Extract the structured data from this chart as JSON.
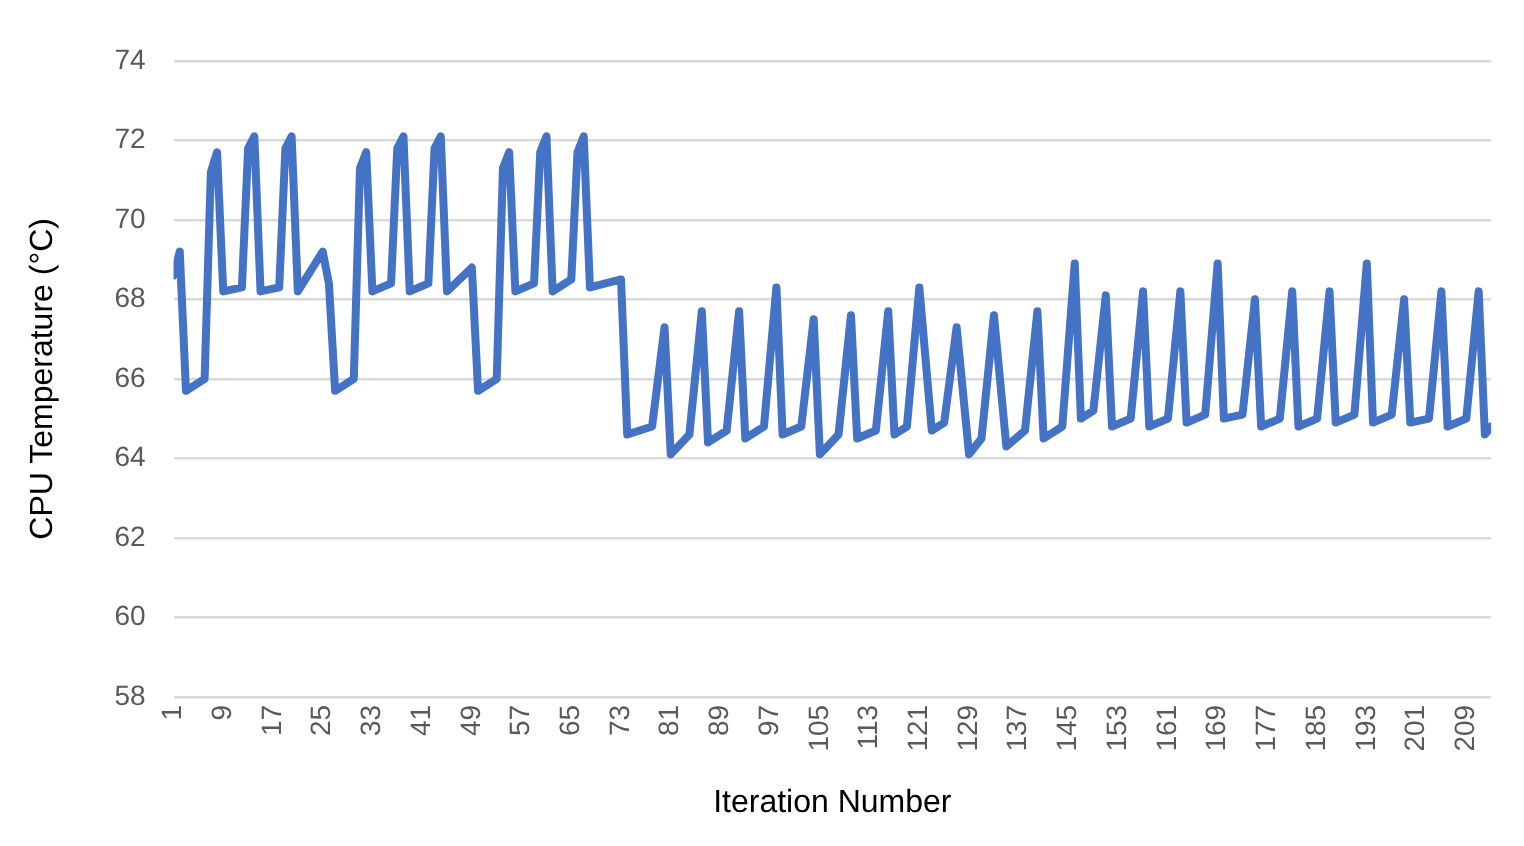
{
  "chart_data": {
    "type": "line",
    "xlabel": "Iteration Number",
    "ylabel": "CPU Temperature (°C)",
    "xlim": [
      1,
      213
    ],
    "xticks": [
      1,
      9,
      17,
      25,
      33,
      41,
      49,
      57,
      65,
      73,
      81,
      89,
      97,
      105,
      113,
      121,
      129,
      137,
      145,
      153,
      161,
      169,
      177,
      185,
      193,
      201,
      209
    ],
    "ylim": [
      58,
      74
    ],
    "yticks": [
      58,
      60,
      62,
      64,
      66,
      68,
      70,
      72,
      74
    ],
    "grid": "y",
    "legend": false,
    "marker": "none",
    "line_style": "solid",
    "series": [
      {
        "color": "#4472c4",
        "x": [
          1,
          2,
          3,
          6,
          7,
          8,
          9,
          12,
          13,
          14,
          15,
          18,
          19,
          20,
          21,
          25,
          26,
          27,
          30,
          31,
          32,
          33,
          36,
          37,
          38,
          39,
          42,
          43,
          44,
          45,
          49,
          50,
          53,
          54,
          55,
          56,
          59,
          60,
          61,
          62,
          65,
          66,
          67,
          68,
          73,
          74,
          78,
          80,
          81,
          84,
          86,
          87,
          90,
          92,
          93,
          96,
          98,
          99,
          102,
          104,
          105,
          108,
          110,
          111,
          114,
          116,
          117,
          119,
          121,
          123,
          125,
          127,
          129,
          131,
          133,
          135,
          138,
          140,
          141,
          144,
          146,
          147,
          149,
          151,
          152,
          155,
          157,
          158,
          161,
          163,
          164,
          167,
          169,
          170,
          173,
          175,
          176,
          179,
          181,
          182,
          185,
          187,
          188,
          191,
          193,
          194,
          197,
          199,
          200,
          203,
          205,
          206,
          209,
          211,
          212,
          213
        ],
        "values": [
          68.6,
          69.2,
          65.7,
          66.0,
          71.2,
          71.7,
          68.2,
          68.3,
          71.8,
          72.1,
          68.2,
          68.3,
          71.8,
          72.1,
          68.2,
          69.2,
          68.4,
          65.7,
          66.0,
          71.3,
          71.7,
          68.2,
          68.4,
          71.8,
          72.1,
          68.2,
          68.4,
          71.8,
          72.1,
          68.2,
          68.8,
          65.7,
          66.0,
          71.3,
          71.7,
          68.2,
          68.4,
          71.7,
          72.1,
          68.2,
          68.5,
          71.7,
          72.1,
          68.3,
          68.5,
          64.6,
          64.8,
          67.3,
          64.1,
          64.6,
          67.7,
          64.4,
          64.7,
          67.7,
          64.5,
          64.8,
          68.3,
          64.6,
          64.8,
          67.5,
          64.1,
          64.6,
          67.6,
          64.5,
          64.7,
          67.7,
          64.6,
          64.8,
          68.3,
          64.7,
          64.9,
          67.3,
          64.1,
          64.5,
          67.6,
          64.3,
          64.7,
          67.7,
          64.5,
          64.8,
          68.9,
          65.0,
          65.2,
          68.1,
          64.8,
          65.0,
          68.2,
          64.8,
          65.0,
          68.2,
          64.9,
          65.1,
          68.9,
          65.0,
          65.1,
          68.0,
          64.8,
          65.0,
          68.2,
          64.8,
          65.0,
          68.2,
          64.9,
          65.1,
          68.9,
          64.9,
          65.1,
          68.0,
          64.9,
          65.0,
          68.2,
          64.8,
          65.0,
          68.2,
          64.6,
          64.8
        ]
      }
    ]
  }
}
